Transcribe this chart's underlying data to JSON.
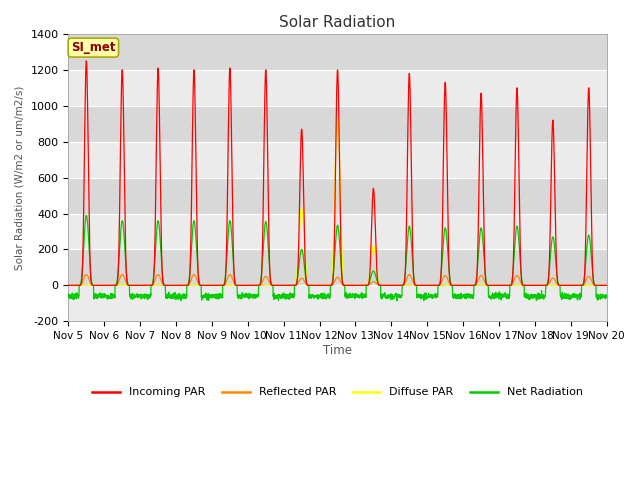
{
  "title": "Solar Radiation",
  "ylabel": "Solar Radiation (W/m2 or um/m2/s)",
  "xlabel": "Time",
  "ylim": [
    -200,
    1400
  ],
  "xlim": [
    0,
    15
  ],
  "annotation_text": "SI_met",
  "plot_bg_light": "#ebebeb",
  "plot_bg_dark": "#d8d8d8",
  "fig_bg": "#ffffff",
  "series": {
    "incoming_par": {
      "label": "Incoming PAR",
      "color": "#ff0000"
    },
    "reflected_par": {
      "label": "Reflected PAR",
      "color": "#ff8800"
    },
    "diffuse_par": {
      "label": "Diffuse PAR",
      "color": "#ffff00"
    },
    "net_radiation": {
      "label": "Net Radiation",
      "color": "#00cc00"
    }
  },
  "xtick_labels": [
    "Nov 5",
    "Nov 6",
    "Nov 7",
    "Nov 8",
    "Nov 9",
    "Nov 10",
    "Nov 11",
    "Nov 12",
    "Nov 13",
    "Nov 14",
    "Nov 15",
    "Nov 16",
    "Nov 17",
    "Nov 18",
    "Nov 19",
    "Nov 20"
  ],
  "xtick_positions": [
    0,
    1,
    2,
    3,
    4,
    5,
    6,
    7,
    8,
    9,
    10,
    11,
    12,
    13,
    14,
    15
  ],
  "ytick_positions": [
    -200,
    0,
    200,
    400,
    600,
    800,
    1000,
    1200,
    1400
  ],
  "day_peaks_incoming": [
    1250,
    1200,
    1210,
    1200,
    1210,
    1200,
    870,
    1200,
    540,
    1180,
    1130,
    1070,
    1100,
    920,
    1100
  ],
  "day_peaks_diffuse": [
    0,
    0,
    0,
    0,
    0,
    0,
    430,
    960,
    220,
    0,
    0,
    0,
    0,
    0,
    0
  ],
  "day_peaks_net": [
    390,
    360,
    360,
    360,
    360,
    355,
    200,
    335,
    80,
    330,
    320,
    320,
    330,
    270,
    280
  ],
  "day_peaks_reflected": [
    60,
    60,
    60,
    60,
    60,
    50,
    40,
    45,
    20,
    60,
    55,
    55,
    55,
    40,
    50
  ],
  "night_net": -60,
  "peak_sharpness": 6.0
}
